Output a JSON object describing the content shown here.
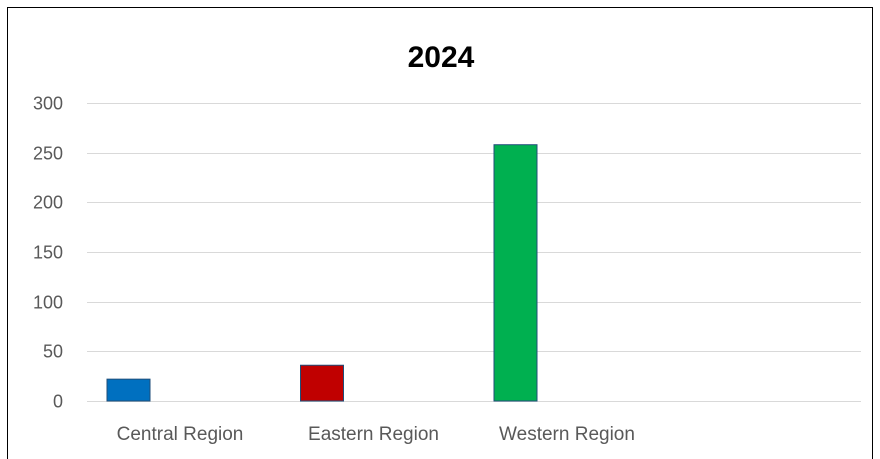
{
  "chart_data": {
    "type": "bar",
    "title": "2024",
    "categories": [
      "Central Region",
      "Eastern Region",
      "Western Region"
    ],
    "values": [
      22,
      36,
      258
    ],
    "colors": [
      "#0070c0",
      "#c00000",
      "#00b050"
    ],
    "bar_edge_color": "#1f4e79",
    "grid_color": "#d9d9d9",
    "yticks": [
      0,
      50,
      100,
      150,
      200,
      250,
      300
    ],
    "ylim": [
      0,
      300
    ],
    "grid": true,
    "legend": "none",
    "xlabel": "",
    "ylabel": ""
  }
}
